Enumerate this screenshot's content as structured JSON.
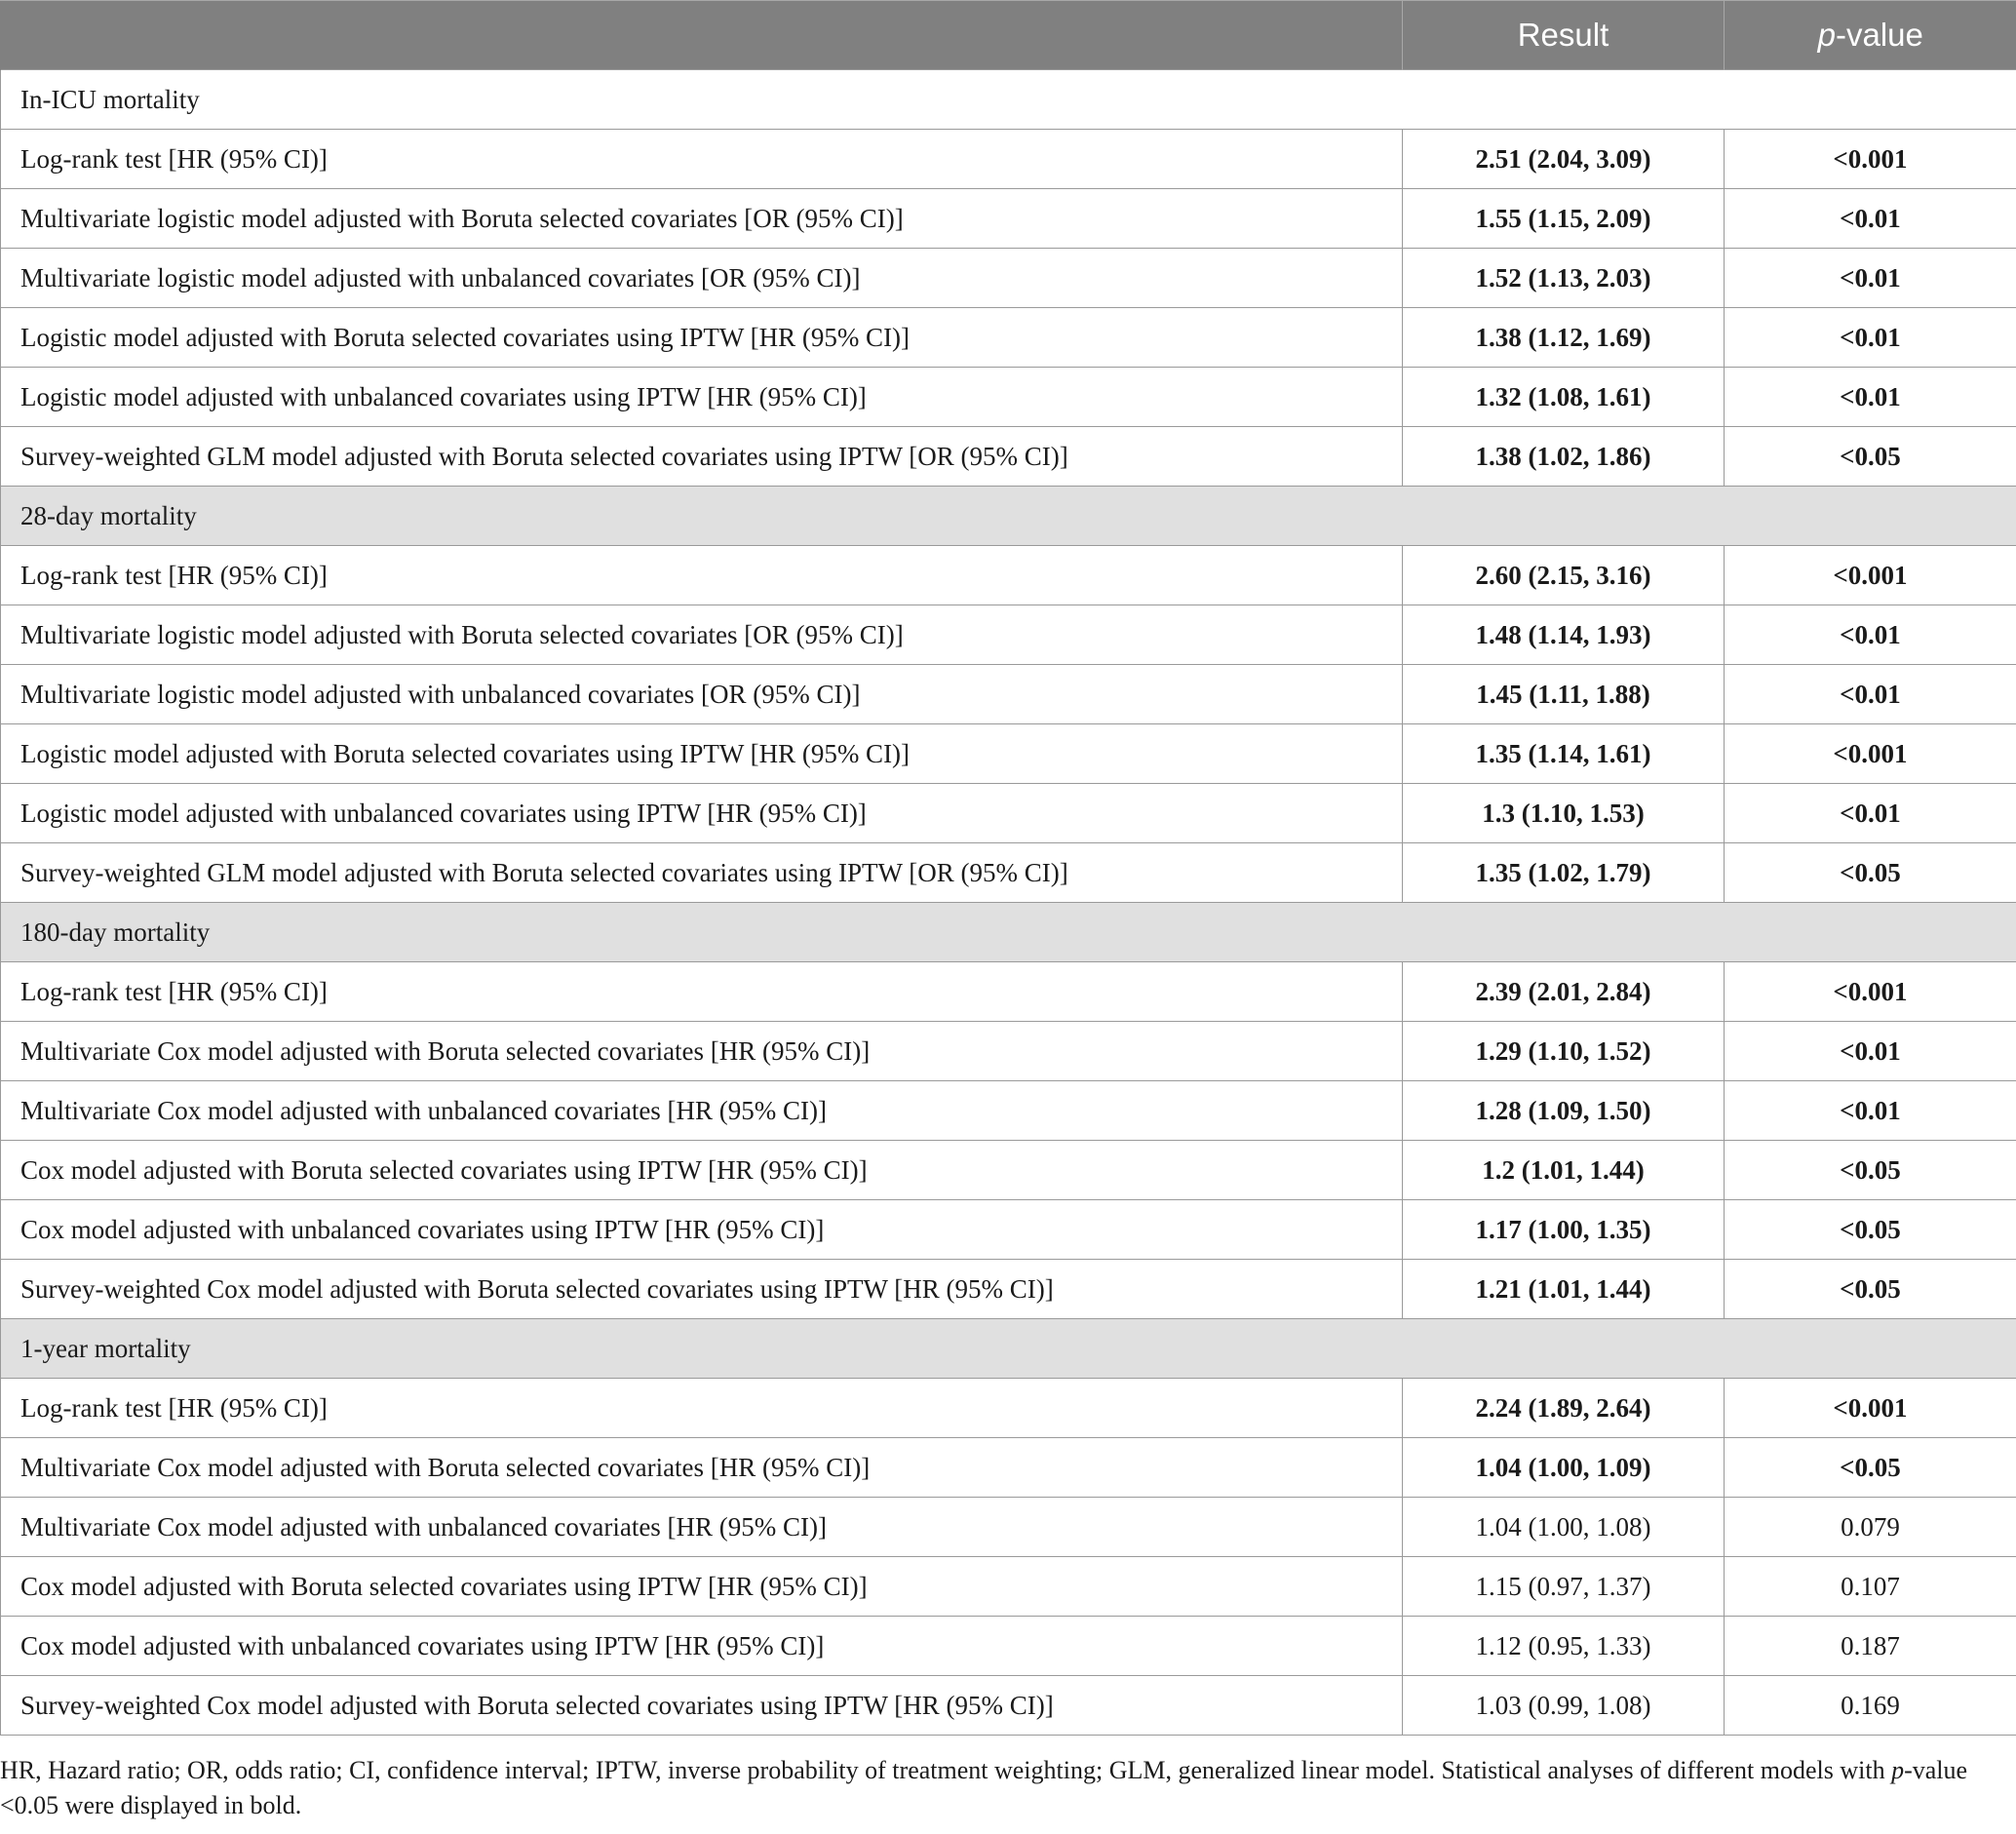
{
  "table": {
    "headers": {
      "label": "",
      "result": "Result",
      "pvalue_italic": "p",
      "pvalue_rest": "-value"
    },
    "sections": [
      {
        "title": "In-ICU mortality",
        "shaded": false,
        "rows": [
          {
            "label": "Log-rank test [HR (95% CI)]",
            "result": "2.51 (2.04, 3.09)",
            "p": "<0.001",
            "bold": true
          },
          {
            "label": "Multivariate logistic model adjusted with Boruta selected covariates [OR (95% CI)]",
            "result": "1.55 (1.15, 2.09)",
            "p": "<0.01",
            "bold": true
          },
          {
            "label": "Multivariate logistic model adjusted with unbalanced covariates [OR (95% CI)]",
            "result": "1.52 (1.13, 2.03)",
            "p": "<0.01",
            "bold": true
          },
          {
            "label": "Logistic model adjusted with Boruta selected covariates using IPTW [HR (95% CI)]",
            "result": "1.38 (1.12, 1.69)",
            "p": "<0.01",
            "bold": true
          },
          {
            "label": "Logistic model adjusted with unbalanced covariates using IPTW [HR (95% CI)]",
            "result": "1.32 (1.08, 1.61)",
            "p": "<0.01",
            "bold": true
          },
          {
            "label": "Survey-weighted GLM model adjusted with Boruta selected covariates using IPTW [OR (95% CI)]",
            "result": "1.38 (1.02, 1.86)",
            "p": "<0.05",
            "bold": true
          }
        ]
      },
      {
        "title": "28-day mortality",
        "shaded": true,
        "rows": [
          {
            "label": "Log-rank test [HR (95% CI)]",
            "result": "2.60 (2.15, 3.16)",
            "p": "<0.001",
            "bold": true
          },
          {
            "label": "Multivariate logistic model adjusted with Boruta selected covariates [OR (95% CI)]",
            "result": "1.48 (1.14, 1.93)",
            "p": "<0.01",
            "bold": true
          },
          {
            "label": "Multivariate logistic model adjusted with unbalanced covariates [OR (95% CI)]",
            "result": "1.45 (1.11, 1.88)",
            "p": "<0.01",
            "bold": true
          },
          {
            "label": "Logistic model adjusted with Boruta selected covariates using IPTW [HR (95% CI)]",
            "result": "1.35 (1.14, 1.61)",
            "p": "<0.001",
            "bold": true
          },
          {
            "label": "Logistic model adjusted with unbalanced covariates using IPTW [HR (95% CI)]",
            "result": "1.3 (1.10, 1.53)",
            "p": "<0.01",
            "bold": true
          },
          {
            "label": "Survey-weighted GLM model adjusted with Boruta selected covariates using IPTW [OR (95% CI)]",
            "result": "1.35 (1.02, 1.79)",
            "p": "<0.05",
            "bold": true
          }
        ]
      },
      {
        "title": "180-day mortality",
        "shaded": true,
        "rows": [
          {
            "label": "Log-rank test [HR (95% CI)]",
            "result": "2.39 (2.01, 2.84)",
            "p": "<0.001",
            "bold": true
          },
          {
            "label": "Multivariate Cox model adjusted with Boruta selected covariates [HR (95% CI)]",
            "result": "1.29 (1.10, 1.52)",
            "p": "<0.01",
            "bold": true
          },
          {
            "label": "Multivariate Cox model adjusted with unbalanced covariates [HR (95% CI)]",
            "result": "1.28 (1.09, 1.50)",
            "p": "<0.01",
            "bold": true
          },
          {
            "label": "Cox model adjusted with Boruta selected covariates using IPTW [HR (95% CI)]",
            "result": "1.2 (1.01, 1.44)",
            "p": "<0.05",
            "bold": true
          },
          {
            "label": "Cox model adjusted with unbalanced covariates using IPTW [HR (95% CI)]",
            "result": "1.17 (1.00, 1.35)",
            "p": "<0.05",
            "bold": true
          },
          {
            "label": "Survey-weighted Cox model adjusted with Boruta selected covariates using IPTW [HR (95% CI)]",
            "result": "1.21 (1.01, 1.44)",
            "p": "<0.05",
            "bold": true
          }
        ]
      },
      {
        "title": "1-year mortality",
        "shaded": true,
        "rows": [
          {
            "label": "Log-rank test [HR (95% CI)]",
            "result": "2.24 (1.89, 2.64)",
            "p": "<0.001",
            "bold": true
          },
          {
            "label": "Multivariate Cox model adjusted with Boruta selected covariates [HR (95% CI)]",
            "result": "1.04 (1.00, 1.09)",
            "p": "<0.05",
            "bold": true
          },
          {
            "label": "Multivariate Cox model adjusted with unbalanced covariates [HR (95% CI)]",
            "result": "1.04 (1.00, 1.08)",
            "p": "0.079",
            "bold": false
          },
          {
            "label": "Cox model adjusted with Boruta selected covariates using IPTW [HR (95% CI)]",
            "result": "1.15 (0.97, 1.37)",
            "p": "0.107",
            "bold": false
          },
          {
            "label": "Cox model adjusted with unbalanced covariates using IPTW [HR (95% CI)]",
            "result": "1.12 (0.95, 1.33)",
            "p": "0.187",
            "bold": false
          },
          {
            "label": "Survey-weighted Cox model adjusted with Boruta selected covariates using IPTW [HR (95% CI)]",
            "result": "1.03 (0.99, 1.08)",
            "p": "0.169",
            "bold": false
          }
        ]
      }
    ]
  },
  "footnote": {
    "part1": "HR, Hazard ratio; OR, odds ratio; CI, confidence interval; IPTW, inverse probability of treatment weighting; GLM, generalized linear model. Statistical analyses of different models with ",
    "italic": "p",
    "part2": "-value <0.05 were displayed in bold."
  },
  "colors": {
    "header_bg": "#808080",
    "section_shade": "#e0e0e0",
    "border": "#9a9a9a"
  }
}
